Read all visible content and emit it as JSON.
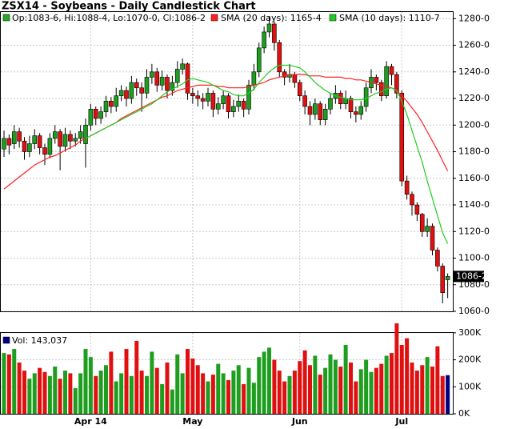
{
  "chart_data": {
    "type": "candlestick",
    "title": "ZSX14 - Soybeans - Daily Candlestick Chart",
    "ohlc_legend": "Op:1083-6, Hi:1088-4, Lo:1070-0, Cl:1086-2",
    "ohlc_legend_color": "#22aa22",
    "up_color": "#1e9e1e",
    "down_color": "#e01010",
    "categories": [
      null,
      null,
      null,
      null,
      null,
      null,
      null,
      null,
      null,
      null,
      null,
      null,
      null,
      null,
      null,
      null,
      null,
      "Apr 14",
      null,
      null,
      null,
      null,
      null,
      null,
      null,
      null,
      null,
      null,
      null,
      null,
      null,
      null,
      null,
      null,
      null,
      null,
      null,
      "May",
      null,
      null,
      null,
      null,
      null,
      null,
      null,
      null,
      null,
      null,
      null,
      null,
      null,
      null,
      null,
      null,
      null,
      null,
      null,
      null,
      "Jun",
      null,
      null,
      null,
      null,
      null,
      null,
      null,
      null,
      null,
      null,
      null,
      null,
      null,
      null,
      null,
      null,
      null,
      null,
      null,
      "Jul",
      null,
      null,
      null,
      null,
      null,
      null,
      null,
      null,
      null
    ],
    "ohlc": [
      [
        1182,
        1196,
        1176,
        1190
      ],
      [
        1190,
        1193,
        1178,
        1185
      ],
      [
        1186,
        1200,
        1182,
        1195
      ],
      [
        1195,
        1198,
        1183,
        1188
      ],
      [
        1188,
        1191,
        1174,
        1180
      ],
      [
        1180,
        1192,
        1176,
        1186
      ],
      [
        1186,
        1197,
        1182,
        1192
      ],
      [
        1192,
        1194,
        1178,
        1183
      ],
      [
        1183,
        1186,
        1170,
        1178
      ],
      [
        1178,
        1194,
        1175,
        1190
      ],
      [
        1190,
        1200,
        1186,
        1195
      ],
      [
        1195,
        1197,
        1166,
        1184
      ],
      [
        1184,
        1198,
        1180,
        1193
      ],
      [
        1193,
        1196,
        1182,
        1188
      ],
      [
        1188,
        1194,
        1184,
        1190
      ],
      [
        1190,
        1200,
        1186,
        1195
      ],
      [
        1186,
        1205,
        1168,
        1200
      ],
      [
        1200,
        1216,
        1196,
        1212
      ],
      [
        1212,
        1214,
        1200,
        1205
      ],
      [
        1205,
        1214,
        1201,
        1210
      ],
      [
        1210,
        1222,
        1206,
        1218
      ],
      [
        1218,
        1221,
        1209,
        1214
      ],
      [
        1214,
        1228,
        1210,
        1222
      ],
      [
        1222,
        1230,
        1218,
        1226
      ],
      [
        1226,
        1229,
        1214,
        1220
      ],
      [
        1220,
        1237,
        1216,
        1232
      ],
      [
        1232,
        1235,
        1222,
        1228
      ],
      [
        1228,
        1232,
        1210,
        1224
      ],
      [
        1224,
        1242,
        1220,
        1236
      ],
      [
        1236,
        1246,
        1231,
        1240
      ],
      [
        1240,
        1243,
        1225,
        1230
      ],
      [
        1230,
        1241,
        1226,
        1236
      ],
      [
        1236,
        1238,
        1220,
        1226
      ],
      [
        1226,
        1237,
        1222,
        1232
      ],
      [
        1232,
        1248,
        1228,
        1242
      ],
      [
        1242,
        1250,
        1238,
        1246
      ],
      [
        1246,
        1247,
        1219,
        1224
      ],
      [
        1224,
        1228,
        1216,
        1222
      ],
      [
        1222,
        1226,
        1214,
        1220
      ],
      [
        1220,
        1224,
        1212,
        1218
      ],
      [
        1218,
        1228,
        1214,
        1224
      ],
      [
        1224,
        1226,
        1206,
        1212
      ],
      [
        1212,
        1221,
        1208,
        1216
      ],
      [
        1216,
        1226,
        1212,
        1222
      ],
      [
        1222,
        1224,
        1205,
        1210
      ],
      [
        1210,
        1219,
        1206,
        1214
      ],
      [
        1214,
        1223,
        1210,
        1218
      ],
      [
        1218,
        1220,
        1206,
        1212
      ],
      [
        1212,
        1234,
        1208,
        1230
      ],
      [
        1230,
        1246,
        1226,
        1240
      ],
      [
        1240,
        1262,
        1236,
        1258
      ],
      [
        1258,
        1274,
        1254,
        1270
      ],
      [
        1270,
        1282,
        1266,
        1276
      ],
      [
        1276,
        1278,
        1256,
        1262
      ],
      [
        1262,
        1264,
        1236,
        1240
      ],
      [
        1240,
        1242,
        1230,
        1236
      ],
      [
        1236,
        1246,
        1232,
        1238
      ],
      [
        1238,
        1240,
        1228,
        1232
      ],
      [
        1232,
        1234,
        1218,
        1222
      ],
      [
        1222,
        1226,
        1208,
        1214
      ],
      [
        1214,
        1218,
        1200,
        1208
      ],
      [
        1208,
        1220,
        1204,
        1216
      ],
      [
        1216,
        1218,
        1200,
        1204
      ],
      [
        1204,
        1216,
        1200,
        1212
      ],
      [
        1212,
        1224,
        1208,
        1220
      ],
      [
        1220,
        1230,
        1216,
        1224
      ],
      [
        1224,
        1226,
        1212,
        1216
      ],
      [
        1216,
        1226,
        1212,
        1220
      ],
      [
        1220,
        1222,
        1205,
        1210
      ],
      [
        1210,
        1214,
        1202,
        1208
      ],
      [
        1208,
        1218,
        1204,
        1214
      ],
      [
        1214,
        1232,
        1210,
        1228
      ],
      [
        1228,
        1242,
        1224,
        1236
      ],
      [
        1236,
        1238,
        1226,
        1232
      ],
      [
        1232,
        1234,
        1218,
        1222
      ],
      [
        1222,
        1248,
        1220,
        1244
      ],
      [
        1244,
        1246,
        1230,
        1238
      ],
      [
        1238,
        1240,
        1220,
        1224
      ],
      [
        1224,
        1226,
        1154,
        1158
      ],
      [
        1158,
        1162,
        1144,
        1148
      ],
      [
        1148,
        1150,
        1132,
        1140
      ],
      [
        1140,
        1142,
        1128,
        1133
      ],
      [
        1133,
        1134,
        1116,
        1120
      ],
      [
        1120,
        1130,
        1116,
        1124
      ],
      [
        1124,
        1126,
        1102,
        1106
      ],
      [
        1106,
        1108,
        1090,
        1094
      ],
      [
        1094,
        1096,
        1066,
        1074
      ],
      [
        1083.75,
        1088.5,
        1070,
        1086.25
      ]
    ],
    "series": [
      {
        "name": "SMA (20 days): 1165-4",
        "color": "#ff2020",
        "values": [
          1152,
          1155,
          1158,
          1161,
          1164,
          1167,
          1170,
          1172,
          1174,
          1176,
          1177,
          1179,
          1181,
          1183,
          1185,
          1188,
          1190,
          1192,
          1194,
          1196,
          1198,
          1200,
          1202,
          1205,
          1207,
          1209,
          1211,
          1213,
          1215,
          1217,
          1219,
          1221,
          1222,
          1224,
          1226,
          1227,
          1228,
          1229,
          1230,
          1230,
          1230,
          1230,
          1229,
          1229,
          1228,
          1228,
          1228,
          1228,
          1229,
          1230,
          1231,
          1232,
          1234,
          1235,
          1236,
          1237,
          1238,
          1238,
          1238,
          1238,
          1237,
          1237,
          1237,
          1236,
          1236,
          1236,
          1236,
          1235,
          1235,
          1234,
          1234,
          1233,
          1232,
          1231,
          1230,
          1229,
          1228,
          1226,
          1222,
          1218,
          1213,
          1208,
          1202,
          1195,
          1188,
          1181,
          1173,
          1165.5
        ]
      },
      {
        "name": "SMA (10 days): 1110-7",
        "color": "#22cc22",
        "values": [
          null,
          null,
          null,
          null,
          null,
          null,
          null,
          null,
          null,
          null,
          null,
          null,
          null,
          null,
          null,
          null,
          1190,
          1192,
          1194,
          1196,
          1198,
          1200,
          1202,
          1204,
          1206,
          1208,
          1210,
          1212,
          1214,
          1216,
          1219,
          1222,
          1225,
          1227,
          1229,
          1231,
          1234,
          1235,
          1234,
          1233,
          1232,
          1230,
          1228,
          1226,
          1225,
          1223,
          1222,
          1222,
          1224,
          1227,
          1232,
          1236,
          1240,
          1243,
          1245,
          1245,
          1245,
          1244,
          1243,
          1240,
          1236,
          1232,
          1229,
          1226,
          1224,
          1222,
          1221,
          1220,
          1219,
          1219,
          1219,
          1220,
          1222,
          1224,
          1225,
          1227,
          1228,
          1226,
          1218,
          1208,
          1196,
          1184,
          1172,
          1158,
          1145,
          1132,
          1119,
          1110.875
        ]
      }
    ],
    "ylim": [
      1060,
      1285
    ],
    "yticks": [
      {
        "value": 1060,
        "label": "1060-0"
      },
      {
        "value": 1080,
        "label": "1080-0"
      },
      {
        "value": 1100,
        "label": "1100-0"
      },
      {
        "value": 1120,
        "label": "1120-0"
      },
      {
        "value": 1140,
        "label": "1140-0"
      },
      {
        "value": 1160,
        "label": "1160-0"
      },
      {
        "value": 1180,
        "label": "1180-0"
      },
      {
        "value": 1200,
        "label": "1200-0"
      },
      {
        "value": 1220,
        "label": "1220-0"
      },
      {
        "value": 1240,
        "label": "1240-0"
      },
      {
        "value": 1260,
        "label": "1260-0"
      },
      {
        "value": 1280,
        "label": "1280-0"
      }
    ],
    "last_price": {
      "value": 1086.25,
      "label": "1086-2"
    },
    "grid": true,
    "volume": {
      "legend": "Vol: 143,037",
      "last_color": "#000080",
      "ylim": [
        0,
        335000
      ],
      "yticks": [
        {
          "value": 0,
          "label": "0K"
        },
        {
          "value": 100000,
          "label": "100K"
        },
        {
          "value": 200000,
          "label": "200K"
        },
        {
          "value": 300000,
          "label": "300K"
        }
      ],
      "values": [
        225000,
        220000,
        240000,
        190000,
        160000,
        130000,
        150000,
        170000,
        155000,
        140000,
        175000,
        130000,
        160000,
        150000,
        95000,
        150000,
        240000,
        210000,
        140000,
        160000,
        180000,
        230000,
        120000,
        150000,
        240000,
        140000,
        270000,
        160000,
        140000,
        230000,
        170000,
        110000,
        190000,
        90000,
        220000,
        150000,
        240000,
        205000,
        180000,
        150000,
        120000,
        145000,
        185000,
        150000,
        125000,
        160000,
        180000,
        110000,
        170000,
        115000,
        210000,
        230000,
        245000,
        200000,
        160000,
        120000,
        140000,
        160000,
        195000,
        235000,
        180000,
        215000,
        145000,
        170000,
        220000,
        200000,
        175000,
        255000,
        190000,
        120000,
        165000,
        200000,
        155000,
        170000,
        185000,
        215000,
        225000,
        335000,
        255000,
        280000,
        190000,
        160000,
        180000,
        210000,
        175000,
        250000,
        140000,
        143037
      ]
    }
  }
}
